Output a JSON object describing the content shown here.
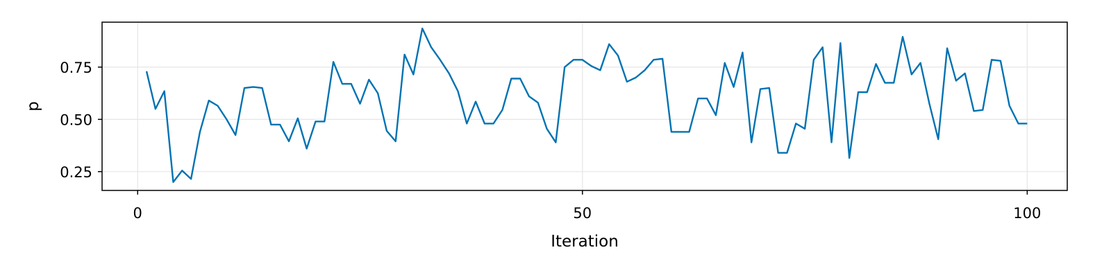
{
  "chart_data": {
    "type": "line",
    "title": "",
    "xlabel": "Iteration",
    "ylabel": "p",
    "xlim": [
      -4,
      104.5
    ],
    "ylim": [
      0.16,
      0.965
    ],
    "xticks": [
      0,
      50,
      100
    ],
    "xtick_labels": [
      "0",
      "50",
      "100"
    ],
    "yticks": [
      0.25,
      0.5,
      0.75
    ],
    "ytick_labels": [
      "0.25",
      "0.50",
      "0.75"
    ],
    "grid": true,
    "legend": "none",
    "series": [
      {
        "color": "#0072b2",
        "x": [
          1,
          2,
          3,
          4,
          5,
          6,
          7,
          8,
          9,
          10,
          11,
          12,
          13,
          14,
          15,
          16,
          17,
          18,
          19,
          20,
          21,
          22,
          23,
          24,
          25,
          26,
          27,
          28,
          29,
          30,
          31,
          32,
          33,
          34,
          35,
          36,
          37,
          38,
          39,
          40,
          41,
          42,
          43,
          44,
          45,
          46,
          47,
          48,
          49,
          50,
          51,
          52,
          53,
          54,
          55,
          56,
          57,
          58,
          59,
          60,
          61,
          62,
          63,
          64,
          65,
          66,
          67,
          68,
          69,
          70,
          71,
          72,
          73,
          74,
          75,
          76,
          77,
          78,
          79,
          80,
          81,
          82,
          83,
          84,
          85,
          86,
          87,
          88,
          89,
          90,
          91,
          92,
          93,
          94,
          95,
          96,
          97,
          98,
          99,
          100
        ],
        "y": [
          0.73,
          0.55,
          0.635,
          0.2,
          0.255,
          0.215,
          0.44,
          0.59,
          0.565,
          0.5,
          0.425,
          0.65,
          0.655,
          0.65,
          0.475,
          0.475,
          0.395,
          0.505,
          0.36,
          0.49,
          0.49,
          0.775,
          0.67,
          0.67,
          0.575,
          0.69,
          0.625,
          0.445,
          0.395,
          0.81,
          0.715,
          0.935,
          0.845,
          0.785,
          0.72,
          0.635,
          0.48,
          0.585,
          0.48,
          0.48,
          0.545,
          0.695,
          0.695,
          0.61,
          0.58,
          0.455,
          0.39,
          0.75,
          0.785,
          0.785,
          0.755,
          0.735,
          0.86,
          0.805,
          0.68,
          0.7,
          0.735,
          0.785,
          0.79,
          0.44,
          0.44,
          0.44,
          0.6,
          0.6,
          0.52,
          0.77,
          0.655,
          0.82,
          0.39,
          0.645,
          0.65,
          0.34,
          0.34,
          0.48,
          0.455,
          0.785,
          0.845,
          0.39,
          0.865,
          0.315,
          0.63,
          0.63,
          0.765,
          0.675,
          0.675,
          0.895,
          0.715,
          0.77,
          0.575,
          0.405,
          0.84,
          0.685,
          0.72,
          0.54,
          0.545,
          0.785,
          0.78,
          0.565,
          0.48,
          0.48
        ]
      }
    ]
  }
}
